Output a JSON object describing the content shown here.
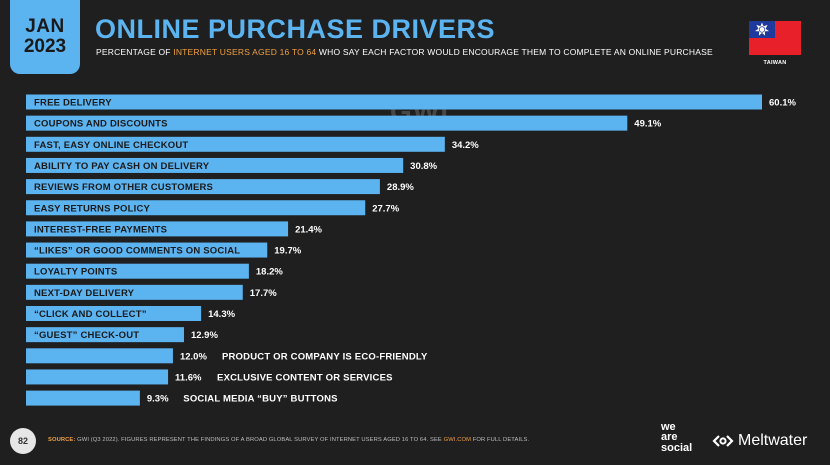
{
  "header": {
    "month": "JAN",
    "year": "2023",
    "title": "ONLINE PURCHASE DRIVERS",
    "subtitle_pre": "PERCENTAGE OF ",
    "subtitle_highlight": "INTERNET USERS AGED 16 TO 64",
    "subtitle_post": " WHO SAY EACH FACTOR WOULD ENCOURAGE THEM TO COMPLETE AN ONLINE PURCHASE",
    "country": "TAIWAN",
    "watermark": "GWI."
  },
  "colors": {
    "bar": "#5bb3f0",
    "accent": "#f0a03c",
    "background": "#1f1f1f"
  },
  "chart_data": {
    "type": "bar",
    "orientation": "horizontal",
    "categories": [
      "FREE DELIVERY",
      "COUPONS AND DISCOUNTS",
      "FAST, EASY ONLINE CHECKOUT",
      "ABILITY TO PAY CASH ON DELIVERY",
      "REVIEWS FROM OTHER CUSTOMERS",
      "EASY RETURNS POLICY",
      "INTEREST-FREE PAYMENTS",
      "“LIKES” OR GOOD COMMENTS ON SOCIAL",
      "LOYALTY POINTS",
      "NEXT-DAY DELIVERY",
      "“CLICK AND COLLECT”",
      "“GUEST” CHECK-OUT",
      "PRODUCT OR COMPANY IS ECO-FRIENDLY",
      "EXCLUSIVE CONTENT OR SERVICES",
      "SOCIAL MEDIA “BUY” BUTTONS"
    ],
    "values": [
      60.1,
      49.1,
      34.2,
      30.8,
      28.9,
      27.7,
      21.4,
      19.7,
      18.2,
      17.7,
      14.3,
      12.9,
      12.0,
      11.6,
      9.3
    ],
    "value_labels": [
      "60.1%",
      "49.1%",
      "34.2%",
      "30.8%",
      "28.9%",
      "27.7%",
      "21.4%",
      "19.7%",
      "18.2%",
      "17.7%",
      "14.3%",
      "12.9%",
      "12.0%",
      "11.6%",
      "9.3%"
    ],
    "xlim": [
      0,
      60.1
    ],
    "grid": false
  },
  "footer": {
    "page_number": "82",
    "source_label": "SOURCE:",
    "source_text": " GWI (Q3 2022). FIGURES REPRESENT THE FINDINGS OF A BROAD GLOBAL SURVEY OF INTERNET USERS AGED 16 TO 64. SEE ",
    "source_link": "GWI.COM",
    "source_end": " FOR FULL DETAILS.",
    "brand_line1": "we",
    "brand_line2": "are",
    "brand_line3": "social",
    "partner": "Meltwater"
  }
}
